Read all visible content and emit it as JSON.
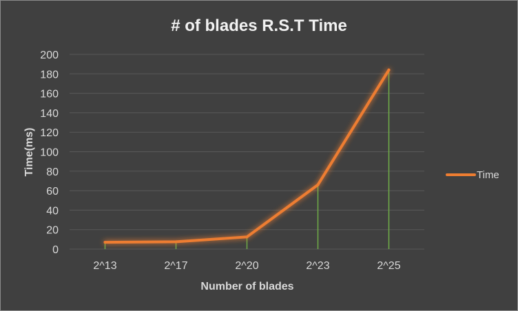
{
  "chart_data": {
    "type": "line",
    "title": "# of blades R.S.T Time",
    "xlabel": "Number of blades",
    "ylabel": "Time(ms)",
    "categories": [
      "2^13",
      "2^17",
      "2^20",
      "2^23",
      "2^25"
    ],
    "series": [
      {
        "name": "Time",
        "values": [
          7,
          7.5,
          12.5,
          66,
          184
        ],
        "color": "#ED7D31"
      }
    ],
    "ylim": [
      0,
      200
    ],
    "yticks": [
      0,
      20,
      40,
      60,
      80,
      100,
      120,
      140,
      160,
      180,
      200
    ],
    "grid": true,
    "drop_lines": true,
    "drop_line_color": "#70AD47",
    "legend_position": "right"
  }
}
